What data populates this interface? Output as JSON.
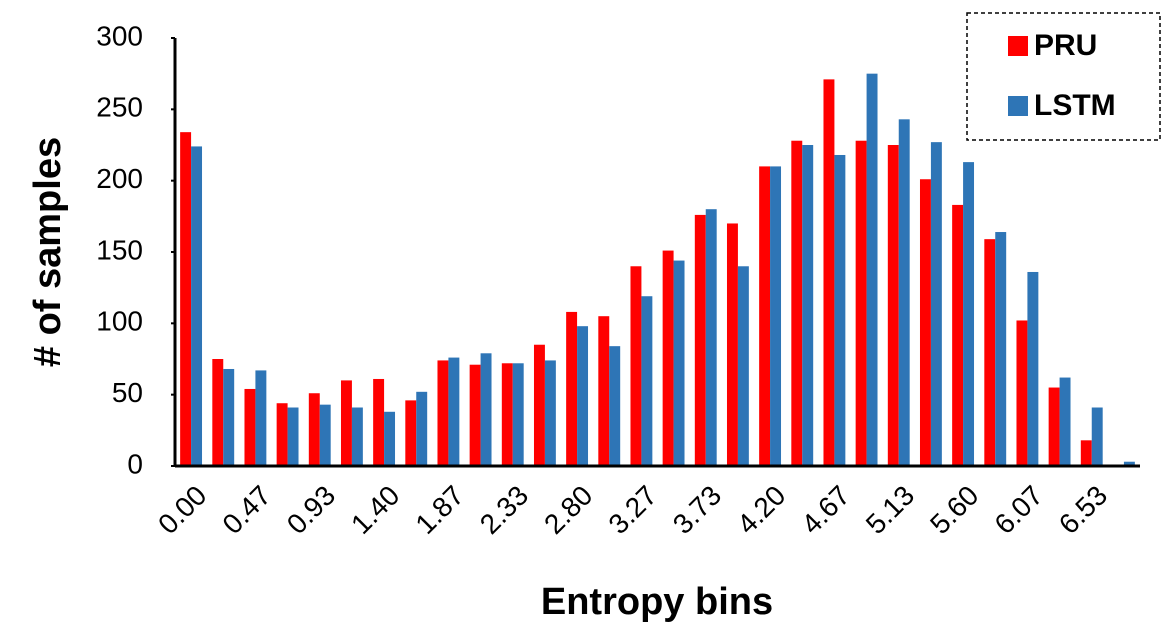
{
  "chart_data": {
    "type": "bar",
    "x_label": "Entropy bins",
    "y_label": "# of samples",
    "categories": [
      "0.00",
      null,
      "0.47",
      null,
      "0.93",
      null,
      "1.40",
      null,
      "1.87",
      null,
      "2.33",
      null,
      "2.80",
      null,
      "3.27",
      null,
      "3.73",
      null,
      "4.20",
      null,
      "4.67",
      null,
      "5.13",
      null,
      "5.60",
      null,
      "6.07",
      null,
      "6.53",
      null
    ],
    "series": [
      {
        "name": "PRU",
        "color": "#ff0000",
        "values": [
          234,
          75,
          54,
          44,
          51,
          60,
          61,
          46,
          74,
          71,
          72,
          85,
          108,
          105,
          140,
          151,
          176,
          170,
          210,
          228,
          271,
          228,
          225,
          201,
          183,
          159,
          102,
          55,
          18,
          1
        ]
      },
      {
        "name": "LSTM",
        "color": "#2e75b6",
        "values": [
          224,
          68,
          67,
          41,
          43,
          41,
          38,
          52,
          76,
          79,
          72,
          74,
          98,
          84,
          119,
          144,
          180,
          140,
          210,
          225,
          218,
          275,
          243,
          227,
          213,
          164,
          136,
          62,
          41,
          3
        ]
      }
    ],
    "ylim": [
      0,
      300
    ],
    "yticks": [
      0,
      50,
      100,
      150,
      200,
      250,
      300
    ],
    "grid": false,
    "legend": "top-right"
  }
}
